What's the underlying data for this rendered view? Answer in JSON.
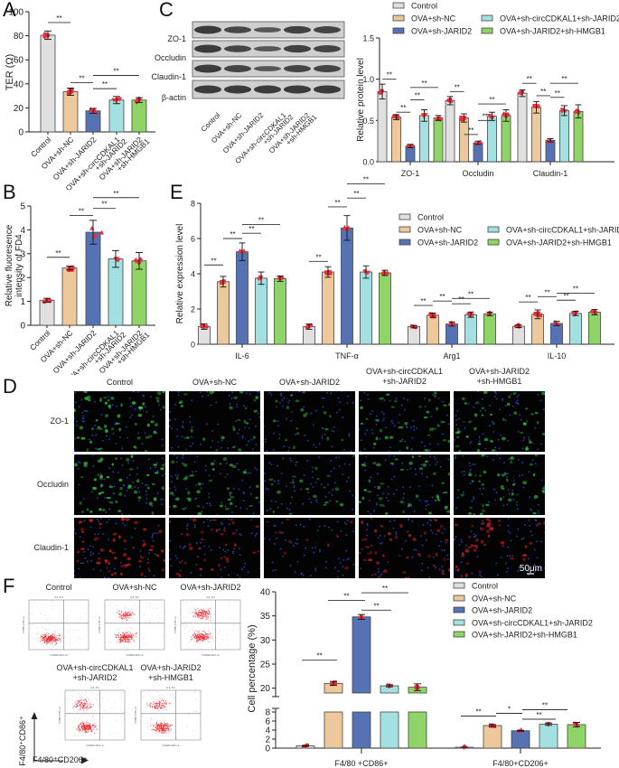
{
  "figure": {
    "panels": [
      "A",
      "B",
      "C",
      "D",
      "E",
      "F"
    ],
    "groups": [
      "Control",
      "OVA+sh-NC",
      "OVA+sh-JARID2",
      "OVA+sh-circCDKAL1+sh-JARID2",
      "OVA+sh-JARID2+sh-HMGB1"
    ],
    "group_labels_wrapped": [
      "Control",
      "OVA+sh-NC",
      "OVA+sh-JARID2",
      "OVA+sh-circCDKAL1\n+sh-JARID2",
      "OVA+sh-JARID2\n+sh-HMGB1"
    ],
    "colors": {
      "Control": "#e0e0e0",
      "OVA+sh-NC": "#ecc89a",
      "OVA+sh-JARID2": "#5572b5",
      "OVA+sh-circCDKAL1+sh-JARID2": "#a3e0e2",
      "OVA+sh-JARID2+sh-HMGB1": "#8fd466",
      "points": "#e8303a",
      "sig_line": "#333333"
    },
    "significance_marker": "**",
    "significance_marker_single": "*"
  },
  "panel_a": {
    "letter": "A"
  },
  "panel_b": {
    "letter": "B"
  },
  "panel_c": {
    "letter": "C",
    "blot_rows": [
      "ZO-1",
      "Occludin",
      "Claudin-1",
      "β-actin"
    ],
    "lane_labels": [
      "Control",
      "OVA+sh-NC",
      "OVA+sh-JARID2",
      "OVA+sh-circCDKAL1\n+sh-JARID2",
      "OVA+sh-JARID2\n+sh-HMGB1"
    ]
  },
  "panel_d": {
    "letter": "D",
    "columns": [
      "Control",
      "OVA+sh-NC",
      "OVA+sh-JARID2",
      "OVA+sh-circCDKAL1\n+sh-JARID2",
      "OVA+sh-JARID2\n+sh-HMGB1"
    ],
    "rows": [
      "ZO-1",
      "Occludin",
      "Claudin-1"
    ],
    "scale_bar": "50μm"
  },
  "panel_e": {
    "letter": "E"
  },
  "panel_f": {
    "letter": "F",
    "flow_titles": [
      "Control",
      "OVA+sh-NC",
      "OVA+sh-JARID2",
      "OVA+sh-circCDKAL1\n+sh-JARID2",
      "OVA+sh-JARID2\n+sh-HMGB1"
    ],
    "flow_y_axis": "F4/80⁺CD86⁺",
    "flow_x_axis": "F4/80⁺CD206⁺",
    "flow_plot_x_label": "CD206 APC-A",
    "flow_plot_y_label": "CD86 FITC-A",
    "flow_gate": "3-1: P1"
  },
  "chart_data": [
    {
      "id": "A",
      "type": "bar",
      "title": "",
      "xlabel": "",
      "ylabel": "TER (Ω)",
      "categories": [
        "Control",
        "OVA+sh-NC",
        "OVA+sh-JARID2",
        "OVA+sh-circCDKAL1+sh-JARID2",
        "OVA+sh-JARID2+sh-HMGB1"
      ],
      "values": [
        80.5,
        33.5,
        17.5,
        26.5,
        26.5
      ],
      "errors": [
        3.5,
        3,
        2,
        3,
        2
      ],
      "ylim": [
        0,
        100
      ],
      "yticks": [
        0,
        20,
        40,
        60,
        80,
        100
      ],
      "significance": [
        {
          "from": 0,
          "to": 1,
          "label": "**"
        },
        {
          "from": 1,
          "to": 2,
          "label": "**"
        },
        {
          "from": 2,
          "to": 3,
          "label": "**"
        },
        {
          "from": 2,
          "to": 4,
          "label": "**"
        }
      ]
    },
    {
      "id": "B",
      "type": "bar",
      "title": "",
      "xlabel": "",
      "ylabel": "Relative fluoresence intensity of FD4",
      "categories": [
        "Control",
        "OVA+sh-NC",
        "OVA+sh-JARID2",
        "OVA+sh-circCDKAL1+sh-JARID2",
        "OVA+sh-JARID2+sh-HMGB1"
      ],
      "values": [
        1.05,
        2.4,
        3.9,
        2.78,
        2.7
      ],
      "errors": [
        0.08,
        0.08,
        0.5,
        0.35,
        0.35
      ],
      "ylim": [
        0,
        5
      ],
      "yticks": [
        0,
        1,
        2,
        3,
        4,
        5
      ],
      "significance": [
        {
          "from": 0,
          "to": 1,
          "label": "**"
        },
        {
          "from": 1,
          "to": 2,
          "label": "**"
        },
        {
          "from": 2,
          "to": 3,
          "label": "**"
        },
        {
          "from": 2,
          "to": 4,
          "label": "**"
        }
      ]
    },
    {
      "id": "C",
      "type": "bar",
      "title": "",
      "xlabel": "",
      "ylabel": "Relative protein level",
      "categories": [
        "ZO-1",
        "Occludin",
        "Claudin-1"
      ],
      "series": [
        {
          "name": "Control",
          "values": [
            0.85,
            0.74,
            0.83
          ],
          "errors": [
            0.09,
            0.05,
            0.04
          ]
        },
        {
          "name": "OVA+sh-NC",
          "values": [
            0.54,
            0.53,
            0.66
          ],
          "errors": [
            0.03,
            0.05,
            0.07
          ]
        },
        {
          "name": "OVA+sh-JARID2",
          "values": [
            0.19,
            0.23,
            0.26
          ],
          "errors": [
            0.02,
            0.02,
            0.02
          ]
        },
        {
          "name": "OVA+sh-circCDKAL1+sh-JARID2",
          "values": [
            0.56,
            0.55,
            0.62
          ],
          "errors": [
            0.07,
            0.05,
            0.06
          ]
        },
        {
          "name": "OVA+sh-JARID2+sh-HMGB1",
          "values": [
            0.53,
            0.56,
            0.61
          ],
          "errors": [
            0.03,
            0.07,
            0.08
          ]
        }
      ],
      "ylim": [
        0,
        1.5
      ],
      "yticks": [
        0.0,
        0.5,
        1.0,
        1.5
      ],
      "legend_position": "top",
      "significance": "** between Control vs OVA+sh-NC, OVA+sh-NC vs OVA+sh-JARID2, OVA+sh-JARID2 vs OVA+sh-circCDKAL1+sh-JARID2, OVA+sh-JARID2 vs OVA+sh-JARID2+sh-HMGB1 for each protein"
    },
    {
      "id": "E",
      "type": "bar",
      "title": "",
      "xlabel": "",
      "ylabel": "Relative expression level",
      "categories": [
        "IL-6",
        "TNF-α",
        "Arg1",
        "IL-10"
      ],
      "series": [
        {
          "name": "Control",
          "values": [
            1.0,
            1.0,
            1.0,
            1.02
          ],
          "errors": [
            0.15,
            0.15,
            0.07,
            0.07
          ]
        },
        {
          "name": "OVA+sh-NC",
          "values": [
            3.55,
            4.1,
            1.65,
            1.7
          ],
          "errors": [
            0.3,
            0.3,
            0.12,
            0.25
          ]
        },
        {
          "name": "OVA+sh-JARID2",
          "values": [
            5.25,
            6.6,
            1.15,
            1.18
          ],
          "errors": [
            0.5,
            0.7,
            0.12,
            0.12
          ]
        },
        {
          "name": "OVA+sh-circCDKAL1+sh-JARID2",
          "values": [
            3.75,
            4.1,
            1.68,
            1.75
          ],
          "errors": [
            0.35,
            0.35,
            0.15,
            0.12
          ]
        },
        {
          "name": "OVA+sh-JARID2+sh-HMGB1",
          "values": [
            3.72,
            4.05,
            1.72,
            1.82
          ],
          "errors": [
            0.15,
            0.15,
            0.1,
            0.15
          ]
        }
      ],
      "ylim": [
        0,
        8
      ],
      "yticks": [
        0,
        2,
        4,
        6,
        8
      ],
      "legend_position": "upper right",
      "significance": "** between Control vs OVA+sh-NC, OVA+sh-NC vs OVA+sh-JARID2, OVA+sh-JARID2 vs OVA+sh-circCDKAL1+sh-JARID2, OVA+sh-JARID2 vs OVA+sh-JARID2+sh-HMGB1 for each gene"
    },
    {
      "id": "F",
      "type": "bar",
      "title": "",
      "xlabel": "",
      "ylabel": "Cell percentage (%)",
      "categories": [
        "F4/80 +CD86+",
        "F4/80+CD206+"
      ],
      "series": [
        {
          "name": "Control",
          "values": [
            0.5,
            0.2
          ],
          "errors": [
            0.08,
            0.03
          ]
        },
        {
          "name": "OVA+sh-NC",
          "values": [
            21.0,
            5.0
          ],
          "errors": [
            0.4,
            0.2
          ]
        },
        {
          "name": "OVA+sh-JARID2",
          "values": [
            34.8,
            3.85
          ],
          "errors": [
            0.5,
            0.1
          ]
        },
        {
          "name": "OVA+sh-circCDKAL1+sh-JARID2",
          "values": [
            20.5,
            5.3
          ],
          "errors": [
            0.2,
            0.25
          ]
        },
        {
          "name": "OVA+sh-JARID2+sh-HMGB1",
          "values": [
            20.2,
            5.2
          ],
          "errors": [
            0.7,
            0.5
          ]
        }
      ],
      "axis_break": {
        "lower": [
          0,
          8
        ],
        "upper": [
          20,
          40
        ]
      },
      "yticks_lower": [
        0,
        2,
        4,
        6,
        8
      ],
      "yticks_upper": [
        20,
        25,
        30,
        35,
        40
      ],
      "legend_position": "upper right",
      "significance": [
        {
          "category": "F4/80 +CD86+",
          "pairs": [
            [
              "Control",
              "OVA+sh-NC",
              "**"
            ],
            [
              "OVA+sh-NC",
              "OVA+sh-JARID2",
              "**"
            ],
            [
              "OVA+sh-JARID2",
              "OVA+sh-circCDKAL1+sh-JARID2",
              "**"
            ],
            [
              "OVA+sh-JARID2",
              "OVA+sh-JARID2+sh-HMGB1",
              "**"
            ]
          ]
        },
        {
          "category": "F4/80+CD206+",
          "pairs": [
            [
              "Control",
              "OVA+sh-NC",
              "**"
            ],
            [
              "OVA+sh-NC",
              "OVA+sh-JARID2",
              "*"
            ],
            [
              "OVA+sh-JARID2",
              "OVA+sh-circCDKAL1+sh-JARID2",
              "**"
            ],
            [
              "OVA+sh-JARID2",
              "OVA+sh-JARID2+sh-HMGB1",
              "**"
            ]
          ]
        }
      ]
    }
  ]
}
